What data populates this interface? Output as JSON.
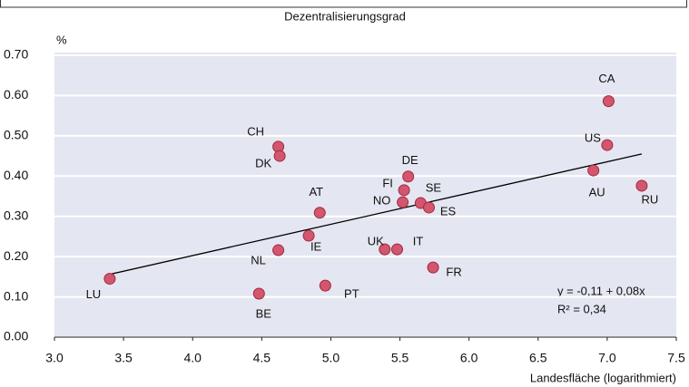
{
  "chart_data": {
    "type": "scatter",
    "subtitle": "Dezentralisierungsgrad",
    "y_unit": "%",
    "x_label": "Landesfläche (logarithmiert)",
    "annotations": [
      "y = -0,11 + 0,08x",
      "R² = 0,34"
    ],
    "color": "#d2566e",
    "labels": [
      "LU",
      "BE",
      "CH",
      "DK",
      "NL",
      "IE",
      "AT",
      "PT",
      "UK",
      "IT",
      "NO",
      "FI",
      "DE",
      "SE",
      "ES",
      "FR",
      "AU",
      "US",
      "CA",
      "RU"
    ],
    "x": [
      3.4,
      4.48,
      4.62,
      4.63,
      4.62,
      4.84,
      4.92,
      4.96,
      5.39,
      5.48,
      5.52,
      5.53,
      5.56,
      5.65,
      5.71,
      5.74,
      6.9,
      7.0,
      7.01,
      7.25
    ],
    "values": [
      0.145,
      0.108,
      0.473,
      0.45,
      0.216,
      0.252,
      0.309,
      0.128,
      0.218,
      0.218,
      0.335,
      0.365,
      0.399,
      0.333,
      0.322,
      0.173,
      0.414,
      0.477,
      0.586,
      0.376
    ],
    "trendline": {
      "x": [
        3.4,
        7.25
      ],
      "y": [
        0.156,
        0.455
      ]
    },
    "xlim": [
      3.0,
      7.5
    ],
    "ylim": [
      0,
      0.7
    ],
    "xticks": [
      {
        "value": 3,
        "label": "3.0"
      },
      3.5,
      {
        "value": 4,
        "label": "4.0"
      },
      4.5,
      {
        "value": 5,
        "label": "5.0"
      },
      5.5,
      {
        "value": 6,
        "label": "6.0"
      },
      6.5,
      {
        "value": 7,
        "label": "7.0"
      },
      7.5
    ],
    "yticks": [
      {
        "value": 0,
        "label": "0.00"
      },
      {
        "value": 0.1,
        "label": "0.10"
      },
      {
        "value": 0.2,
        "label": "0.20"
      },
      {
        "value": 0.3,
        "label": "0.30"
      },
      {
        "value": 0.4,
        "label": "0.40"
      },
      {
        "value": 0.5,
        "label": "0.50"
      },
      {
        "value": 0.6,
        "label": "0.60"
      },
      {
        "value": 0.7,
        "label": "0.70"
      }
    ],
    "grid": true
  }
}
